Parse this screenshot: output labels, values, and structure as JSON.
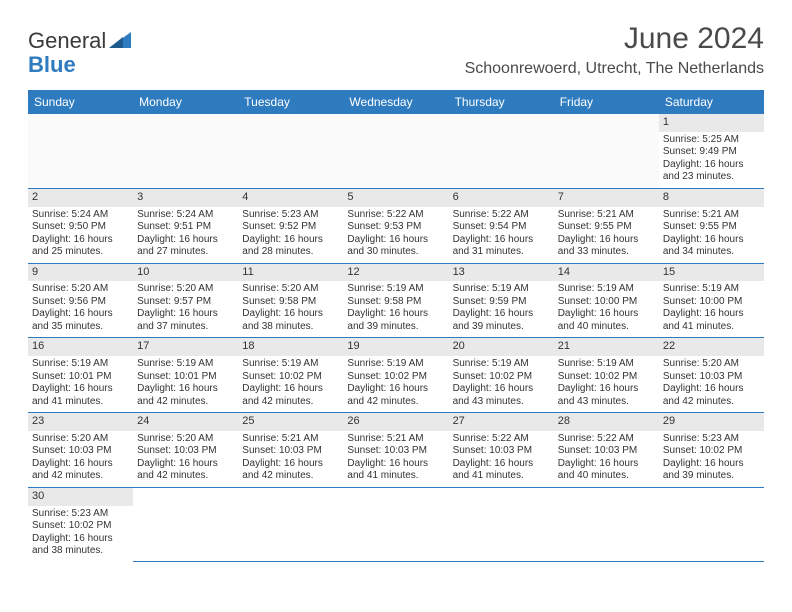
{
  "brand": {
    "part1": "General",
    "part2": "Blue",
    "logo_color": "#2f7bbf"
  },
  "title": "June 2024",
  "location": "Schoonrewoerd, Utrecht, The Netherlands",
  "colors": {
    "header_bg": "#2f7bbf",
    "header_text": "#ffffff",
    "text": "#333333",
    "daynum_bg": "#e9e9e9",
    "border": "#2f7bbf"
  },
  "typography": {
    "title_fontsize": 30,
    "location_fontsize": 16,
    "dayheader_fontsize": 12,
    "cell_fontsize": 10
  },
  "day_headers": [
    "Sunday",
    "Monday",
    "Tuesday",
    "Wednesday",
    "Thursday",
    "Friday",
    "Saturday"
  ],
  "weeks": [
    [
      null,
      null,
      null,
      null,
      null,
      null,
      {
        "n": "1",
        "sr": "Sunrise: 5:25 AM",
        "ss": "Sunset: 9:49 PM",
        "d1": "Daylight: 16 hours",
        "d2": "and 23 minutes."
      }
    ],
    [
      {
        "n": "2",
        "sr": "Sunrise: 5:24 AM",
        "ss": "Sunset: 9:50 PM",
        "d1": "Daylight: 16 hours",
        "d2": "and 25 minutes."
      },
      {
        "n": "3",
        "sr": "Sunrise: 5:24 AM",
        "ss": "Sunset: 9:51 PM",
        "d1": "Daylight: 16 hours",
        "d2": "and 27 minutes."
      },
      {
        "n": "4",
        "sr": "Sunrise: 5:23 AM",
        "ss": "Sunset: 9:52 PM",
        "d1": "Daylight: 16 hours",
        "d2": "and 28 minutes."
      },
      {
        "n": "5",
        "sr": "Sunrise: 5:22 AM",
        "ss": "Sunset: 9:53 PM",
        "d1": "Daylight: 16 hours",
        "d2": "and 30 minutes."
      },
      {
        "n": "6",
        "sr": "Sunrise: 5:22 AM",
        "ss": "Sunset: 9:54 PM",
        "d1": "Daylight: 16 hours",
        "d2": "and 31 minutes."
      },
      {
        "n": "7",
        "sr": "Sunrise: 5:21 AM",
        "ss": "Sunset: 9:55 PM",
        "d1": "Daylight: 16 hours",
        "d2": "and 33 minutes."
      },
      {
        "n": "8",
        "sr": "Sunrise: 5:21 AM",
        "ss": "Sunset: 9:55 PM",
        "d1": "Daylight: 16 hours",
        "d2": "and 34 minutes."
      }
    ],
    [
      {
        "n": "9",
        "sr": "Sunrise: 5:20 AM",
        "ss": "Sunset: 9:56 PM",
        "d1": "Daylight: 16 hours",
        "d2": "and 35 minutes."
      },
      {
        "n": "10",
        "sr": "Sunrise: 5:20 AM",
        "ss": "Sunset: 9:57 PM",
        "d1": "Daylight: 16 hours",
        "d2": "and 37 minutes."
      },
      {
        "n": "11",
        "sr": "Sunrise: 5:20 AM",
        "ss": "Sunset: 9:58 PM",
        "d1": "Daylight: 16 hours",
        "d2": "and 38 minutes."
      },
      {
        "n": "12",
        "sr": "Sunrise: 5:19 AM",
        "ss": "Sunset: 9:58 PM",
        "d1": "Daylight: 16 hours",
        "d2": "and 39 minutes."
      },
      {
        "n": "13",
        "sr": "Sunrise: 5:19 AM",
        "ss": "Sunset: 9:59 PM",
        "d1": "Daylight: 16 hours",
        "d2": "and 39 minutes."
      },
      {
        "n": "14",
        "sr": "Sunrise: 5:19 AM",
        "ss": "Sunset: 10:00 PM",
        "d1": "Daylight: 16 hours",
        "d2": "and 40 minutes."
      },
      {
        "n": "15",
        "sr": "Sunrise: 5:19 AM",
        "ss": "Sunset: 10:00 PM",
        "d1": "Daylight: 16 hours",
        "d2": "and 41 minutes."
      }
    ],
    [
      {
        "n": "16",
        "sr": "Sunrise: 5:19 AM",
        "ss": "Sunset: 10:01 PM",
        "d1": "Daylight: 16 hours",
        "d2": "and 41 minutes."
      },
      {
        "n": "17",
        "sr": "Sunrise: 5:19 AM",
        "ss": "Sunset: 10:01 PM",
        "d1": "Daylight: 16 hours",
        "d2": "and 42 minutes."
      },
      {
        "n": "18",
        "sr": "Sunrise: 5:19 AM",
        "ss": "Sunset: 10:02 PM",
        "d1": "Daylight: 16 hours",
        "d2": "and 42 minutes."
      },
      {
        "n": "19",
        "sr": "Sunrise: 5:19 AM",
        "ss": "Sunset: 10:02 PM",
        "d1": "Daylight: 16 hours",
        "d2": "and 42 minutes."
      },
      {
        "n": "20",
        "sr": "Sunrise: 5:19 AM",
        "ss": "Sunset: 10:02 PM",
        "d1": "Daylight: 16 hours",
        "d2": "and 43 minutes."
      },
      {
        "n": "21",
        "sr": "Sunrise: 5:19 AM",
        "ss": "Sunset: 10:02 PM",
        "d1": "Daylight: 16 hours",
        "d2": "and 43 minutes."
      },
      {
        "n": "22",
        "sr": "Sunrise: 5:20 AM",
        "ss": "Sunset: 10:03 PM",
        "d1": "Daylight: 16 hours",
        "d2": "and 42 minutes."
      }
    ],
    [
      {
        "n": "23",
        "sr": "Sunrise: 5:20 AM",
        "ss": "Sunset: 10:03 PM",
        "d1": "Daylight: 16 hours",
        "d2": "and 42 minutes."
      },
      {
        "n": "24",
        "sr": "Sunrise: 5:20 AM",
        "ss": "Sunset: 10:03 PM",
        "d1": "Daylight: 16 hours",
        "d2": "and 42 minutes."
      },
      {
        "n": "25",
        "sr": "Sunrise: 5:21 AM",
        "ss": "Sunset: 10:03 PM",
        "d1": "Daylight: 16 hours",
        "d2": "and 42 minutes."
      },
      {
        "n": "26",
        "sr": "Sunrise: 5:21 AM",
        "ss": "Sunset: 10:03 PM",
        "d1": "Daylight: 16 hours",
        "d2": "and 41 minutes."
      },
      {
        "n": "27",
        "sr": "Sunrise: 5:22 AM",
        "ss": "Sunset: 10:03 PM",
        "d1": "Daylight: 16 hours",
        "d2": "and 41 minutes."
      },
      {
        "n": "28",
        "sr": "Sunrise: 5:22 AM",
        "ss": "Sunset: 10:03 PM",
        "d1": "Daylight: 16 hours",
        "d2": "and 40 minutes."
      },
      {
        "n": "29",
        "sr": "Sunrise: 5:23 AM",
        "ss": "Sunset: 10:02 PM",
        "d1": "Daylight: 16 hours",
        "d2": "and 39 minutes."
      }
    ],
    [
      {
        "n": "30",
        "sr": "Sunrise: 5:23 AM",
        "ss": "Sunset: 10:02 PM",
        "d1": "Daylight: 16 hours",
        "d2": "and 38 minutes."
      },
      null,
      null,
      null,
      null,
      null,
      null
    ]
  ]
}
